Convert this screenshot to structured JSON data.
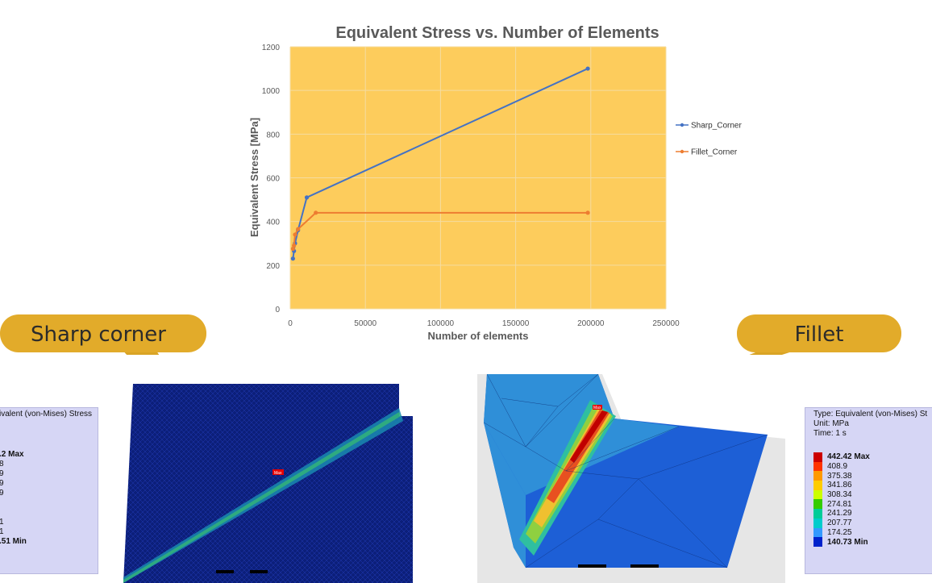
{
  "chart_data": {
    "type": "line",
    "title": "Equivalent Stress vs. Number of Elements",
    "xlabel": "Number of elements",
    "ylabel": "Equivalent Stress [MPa]",
    "xlim": [
      0,
      250000
    ],
    "ylim": [
      0,
      1200
    ],
    "xticks": [
      0,
      50000,
      100000,
      150000,
      200000,
      250000
    ],
    "yticks": [
      0,
      200,
      400,
      600,
      800,
      1000,
      1200
    ],
    "grid": true,
    "legend": "right",
    "plot_background": "#fdcc5c",
    "series": [
      {
        "name": "Sharp_Corner",
        "color": "#4472c4",
        "x": [
          1800,
          2500,
          3200,
          5200,
          11000,
          198000
        ],
        "y": [
          230,
          265,
          300,
          360,
          510,
          1100
        ]
      },
      {
        "name": "Fillet_Corner",
        "color": "#ed7d31",
        "x": [
          1800,
          2500,
          3200,
          5200,
          17000,
          198000
        ],
        "y": [
          275,
          290,
          340,
          365,
          440,
          440
        ]
      }
    ]
  },
  "callouts": {
    "sharp": "Sharp corner",
    "fillet": "Fillet"
  },
  "left_panel": {
    "lines": [
      "ivalent (von-Mises) Stress"
    ],
    "max_label": ".2 Max",
    "values": [
      "8",
      "9",
      "9",
      "9",
      "",
      "",
      "1",
      "1"
    ],
    "min_label": ".51 Min"
  },
  "right_panel": {
    "lines": [
      "Type: Equivalent (von-Mises) St",
      "Unit: MPa",
      "Time: 1 s"
    ],
    "max_label": "442.42 Max",
    "values": [
      "408.9",
      "375.38",
      "341.86",
      "308.34",
      "274.81",
      "241.29",
      "207.77",
      "174.25"
    ],
    "min_label": "140.73 Min"
  },
  "legend_colors": [
    "#cc0000",
    "#ff3300",
    "#ff9900",
    "#ffcc00",
    "#ccff00",
    "#33cc00",
    "#00cc99",
    "#00cccc",
    "#3399ff",
    "#0022cc"
  ],
  "mesh_labels": {
    "sharp_max": "Max",
    "fillet_max": "Max"
  }
}
